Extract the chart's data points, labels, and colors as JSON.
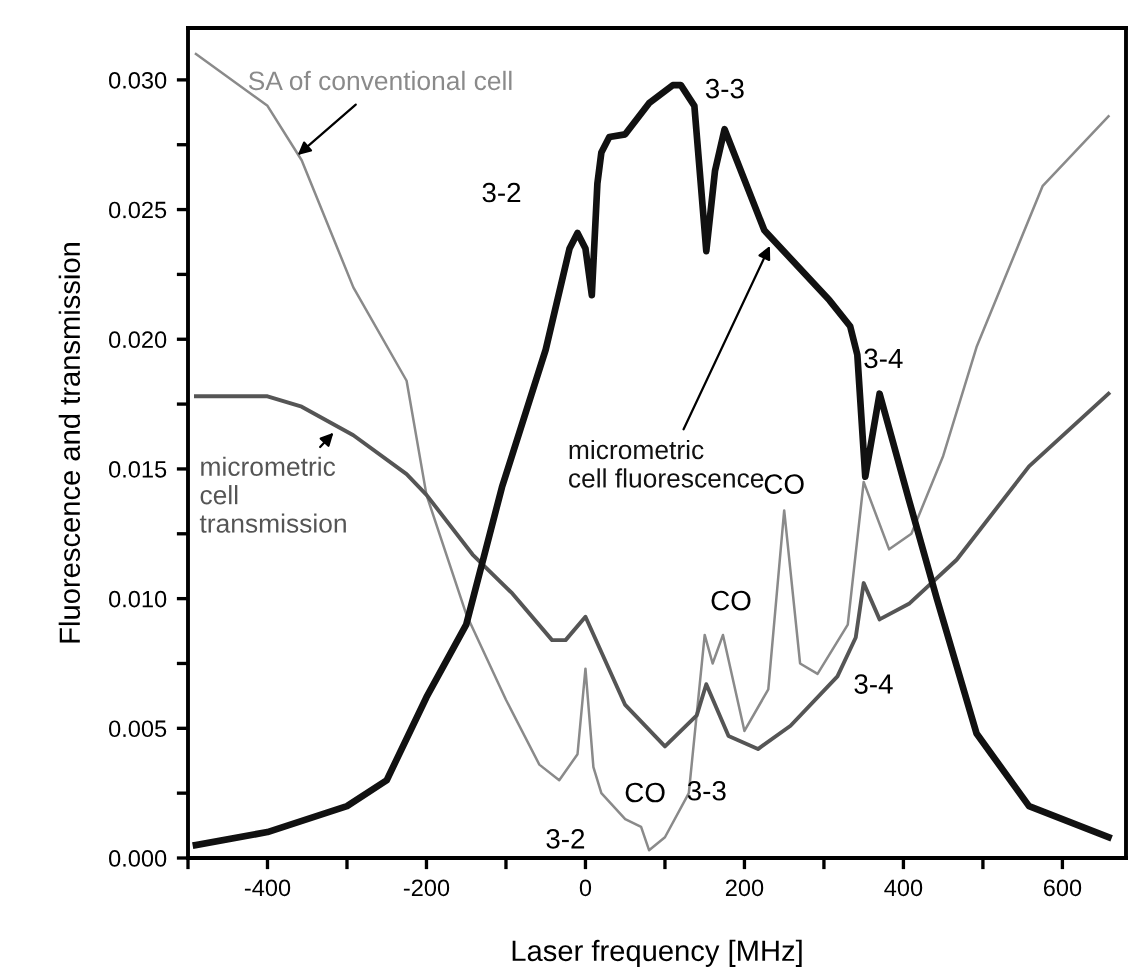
{
  "chart_data": {
    "type": "line",
    "xlabel": "Laser frequency [MHz]",
    "ylabel": "Fluorescence and transmission",
    "xlim": [
      -500,
      680
    ],
    "ylim": [
      0,
      0.032
    ],
    "xticks": [
      {
        "value": -500,
        "label": null
      },
      -400,
      {
        "value": -300,
        "label": null
      },
      -200,
      {
        "value": -100,
        "label": null
      },
      0,
      {
        "value": 100,
        "label": null
      },
      200,
      {
        "value": 300,
        "label": null
      },
      400,
      {
        "value": 500,
        "label": null
      },
      600
    ],
    "yticks": [
      {
        "value": 0,
        "label": "0.000"
      },
      {
        "value": 0.0025,
        "label": null
      },
      {
        "value": 0.005,
        "label": "0.005"
      },
      {
        "value": 0.0075,
        "label": null
      },
      {
        "value": 0.01,
        "label": "0.010"
      },
      {
        "value": 0.0125,
        "label": null
      },
      {
        "value": 0.015,
        "label": "0.015"
      },
      {
        "value": 0.0175,
        "label": null
      },
      {
        "value": 0.02,
        "label": "0.020"
      },
      {
        "value": 0.0225,
        "label": null
      },
      {
        "value": 0.025,
        "label": "0.025"
      },
      {
        "value": 0.0275,
        "label": null
      },
      {
        "value": 0.03,
        "label": "0.030"
      }
    ],
    "grid": false,
    "marker": "none",
    "line_style": "solid",
    "series": [
      {
        "color": "#8a8a8a",
        "x": [
          -490,
          -400,
          -357,
          -292,
          -225,
          -200,
          -150,
          -100,
          -58,
          -33,
          -10,
          0,
          10,
          20,
          50,
          70,
          80,
          100,
          130,
          150,
          160,
          173,
          200,
          230,
          250,
          270,
          292,
          330,
          350,
          382,
          410,
          450,
          492,
          575,
          658
        ],
        "values": [
          0.031,
          0.029,
          0.0269,
          0.022,
          0.0184,
          0.014,
          0.0094,
          0.0061,
          0.0036,
          0.003,
          0.004,
          0.0073,
          0.0035,
          0.0025,
          0.0015,
          0.0012,
          0.0003,
          0.0008,
          0.0025,
          0.0086,
          0.0075,
          0.0086,
          0.0049,
          0.0065,
          0.0134,
          0.0075,
          0.0071,
          0.009,
          0.0145,
          0.0119,
          0.0125,
          0.0155,
          0.0197,
          0.0259,
          0.0286
        ]
      },
      {
        "color": "#555555",
        "x": [
          -490,
          -400,
          -357,
          -292,
          -225,
          -200,
          -142,
          -92,
          -42,
          -25,
          0,
          50,
          100,
          140,
          152,
          180,
          217,
          258,
          317,
          340,
          350,
          370,
          407,
          467,
          558,
          658
        ],
        "values": [
          0.0178,
          0.0178,
          0.0174,
          0.0163,
          0.0148,
          0.014,
          0.0117,
          0.0102,
          0.0084,
          0.0084,
          0.0093,
          0.0059,
          0.0043,
          0.0055,
          0.0067,
          0.0047,
          0.0042,
          0.0051,
          0.007,
          0.0085,
          0.0106,
          0.0092,
          0.0098,
          0.0115,
          0.0151,
          0.0179
        ]
      },
      {
        "color": "#111111",
        "x": [
          -490,
          -400,
          -300,
          -250,
          -200,
          -150,
          -105,
          -50,
          -20,
          -10,
          0,
          8,
          15,
          20,
          30,
          50,
          80,
          110,
          120,
          137,
          152,
          163,
          175,
          225,
          307,
          333,
          342,
          352,
          370,
          407,
          442,
          492,
          558,
          658
        ],
        "values": [
          0.0005,
          0.001,
          0.002,
          0.003,
          0.0062,
          0.009,
          0.0143,
          0.0196,
          0.0235,
          0.0241,
          0.0235,
          0.0217,
          0.026,
          0.0272,
          0.0278,
          0.0279,
          0.0291,
          0.0298,
          0.0298,
          0.029,
          0.0234,
          0.0265,
          0.0281,
          0.0242,
          0.0215,
          0.0205,
          0.0194,
          0.0147,
          0.0179,
          0.0138,
          0.01,
          0.0048,
          0.002,
          0.0008
        ]
      }
    ],
    "annotations": [
      {
        "text": "SA of conventional cell",
        "x": -362,
        "y": 0.0271
      },
      {
        "text": "micrometric\ncell\ntransmission",
        "x": -317,
        "y": 0.0164
      },
      {
        "text": "micrometric\ncell fluorescence",
        "x": 232,
        "y": 0.0236
      },
      {
        "text": "3-2",
        "x": -10,
        "y": 0.0241
      },
      {
        "text": "3-3",
        "x": 120,
        "y": 0.0298
      },
      {
        "text": "3-4",
        "x": 342,
        "y": 0.0194
      },
      {
        "text": "CO",
        "x": 250,
        "y": 0.0134
      },
      {
        "text": "CO",
        "x": 173,
        "y": 0.0086
      },
      {
        "text": "3-4",
        "x": 317,
        "y": 0.007
      },
      {
        "text": "3-2",
        "x": 10,
        "y": 0.0035
      },
      {
        "text": "CO",
        "x": 70,
        "y": 0.0012
      },
      {
        "text": "3-3",
        "x": 130,
        "y": 0.0025
      }
    ]
  }
}
